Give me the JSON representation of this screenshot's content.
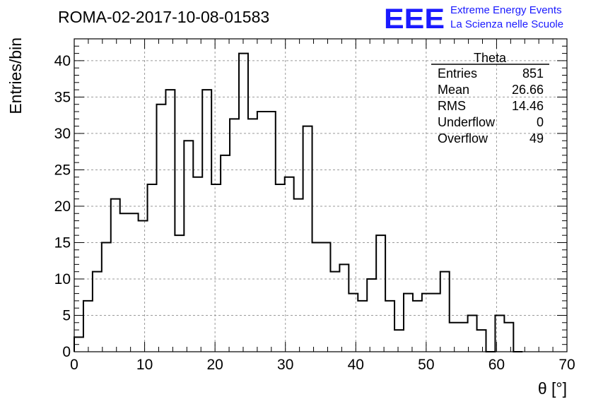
{
  "chart_data": {
    "type": "bar",
    "title": "ROMA-02-2017-10-08-01583",
    "xlabel": "θ [°]",
    "ylabel": "Entries/bin",
    "xlim": [
      0,
      70
    ],
    "ylim": [
      0,
      43
    ],
    "grid": true,
    "bin_width": 1.3,
    "bin_start": 0,
    "xticks": [
      0,
      10,
      20,
      30,
      40,
      50,
      60,
      70
    ],
    "yticks": [
      0,
      5,
      10,
      15,
      20,
      25,
      30,
      35,
      40
    ],
    "values": [
      2,
      7,
      11,
      15,
      21,
      19,
      19,
      18,
      23,
      34,
      36,
      16,
      29,
      24,
      36,
      23,
      27,
      32,
      41,
      32,
      33,
      33,
      23,
      24,
      21,
      31,
      15,
      15,
      11,
      12,
      8,
      7,
      10,
      16,
      7,
      3,
      8,
      7,
      8,
      8,
      11,
      4,
      4,
      5,
      3,
      0,
      5,
      4,
      0
    ]
  },
  "logo": {
    "mark": "EEE",
    "line1": "Extreme Energy Events",
    "line2": "La Scienza nelle Scuole"
  },
  "stats": {
    "name": "Theta",
    "rows": [
      {
        "label": "Entries",
        "value": "851"
      },
      {
        "label": "Mean",
        "value": "26.66"
      },
      {
        "label": "RMS",
        "value": "14.46"
      },
      {
        "label": "Underflow",
        "value": "0"
      },
      {
        "label": "Overflow",
        "value": "49"
      }
    ]
  }
}
